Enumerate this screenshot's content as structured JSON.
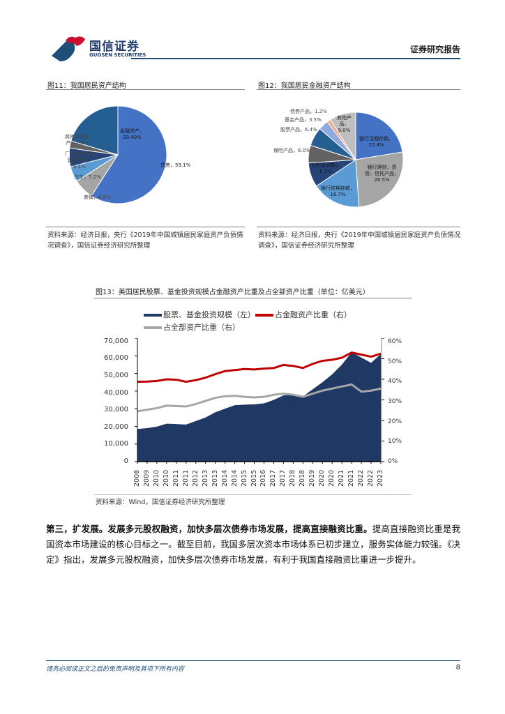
{
  "header": {
    "logo_cn": "国信证券",
    "logo_en": "GUOSEN SECURITIES",
    "report_type": "证券研究报告",
    "colors": {
      "brand_blue": "#1f4e79",
      "brand_red": "#c8102e"
    }
  },
  "figure11": {
    "title": "图11：我国居民资产结构",
    "source": "资料来源：经济日报，央行《2019年中国城镇居民家庭资产负债情况调查》，国信证券经济研究所整理",
    "labels": {
      "housing": "住房，59.1%",
      "financial_l1": "金融资产，",
      "financial_l2": "20.40%",
      "other_l1": "其他实物资",
      "other_l2": "产，2.4%",
      "plant_l1": "厂房设备等经",
      "plant_l2": "营性资产，",
      "plant_l3": "6.1%",
      "car": "汽车，5.2%",
      "shop": "商铺，6.8%"
    }
  },
  "figure12": {
    "title": "图12：我国居民金融资产结构",
    "source": "资料来源：经济日报，央行《2019年中国城镇居民家庭资产负债情况调查》，国信证券经济研究所整理",
    "labels": {
      "demand_l1": "银行活期存款，",
      "demand_l2": "22.4%",
      "wealth_l1": "银行理财，资",
      "wealth_l2": "管，信托产品，",
      "wealth_l3": "26.5%",
      "time_l1": "银行定期存款，",
      "time_l2": "16.7%",
      "fund_provident_l1": "公积金余额，",
      "fund_provident_l2": "8.3%",
      "insurance": "保险产品，6.0%",
      "stock": "股票产品，6.4%",
      "fund": "基金产品，3.5%",
      "bond": "债券产品，1.2%",
      "other_l1": "其他产",
      "other_l2": "品，",
      "other_l3": "9.0%"
    }
  },
  "figure13": {
    "title": "图13：美国居民股票、基金投资规模占金融资产比重及占全部资产比重（单位：亿美元）",
    "source": "资料来源：Wind，国信证券经济研究所整理",
    "legend": {
      "series1": "股票、基金投资规模（左）",
      "series2": "占金融资产比重（右）",
      "series3": "占全部资产比重（右）"
    },
    "y_left_ticks": [
      "70,000",
      "60,000",
      "50,000",
      "40,000",
      "30,000",
      "20,000",
      "10,000",
      "0"
    ],
    "y_right_ticks": [
      "60%",
      "50%",
      "40%",
      "30%",
      "20%",
      "10%",
      "0%"
    ]
  },
  "chart_data": [
    {
      "type": "pie",
      "title": "图11：我国居民资产结构",
      "categories": [
        "住房",
        "商铺",
        "汽车",
        "厂房设备等经营性资产",
        "其他实物资产",
        "金融资产"
      ],
      "values": [
        59.1,
        6.8,
        5.2,
        6.1,
        2.4,
        20.4
      ],
      "unit": "%",
      "colors": [
        "#4472c4",
        "#a5a5a5",
        "#5b9bd5",
        "#264478",
        "#636363",
        "#255e91"
      ]
    },
    {
      "type": "pie",
      "title": "图12：我国居民金融资产结构",
      "categories": [
        "银行活期存款",
        "银行理财，资管，信托产品",
        "银行定期存款",
        "公积金余额",
        "保险产品",
        "股票产品",
        "基金产品",
        "债券产品",
        "其他产品"
      ],
      "values": [
        22.4,
        26.5,
        16.7,
        8.3,
        6.0,
        6.4,
        3.5,
        1.2,
        9.0
      ],
      "unit": "%",
      "colors": [
        "#4472c4",
        "#a5a5a5",
        "#5b9bd5",
        "#264478",
        "#636363",
        "#255e91",
        "#8faadc",
        "#f4a582",
        "#bfbfbf"
      ]
    },
    {
      "type": "area",
      "title": "图13：美国居民股票、基金投资规模占金融资产比重及占全部资产比重（单位：亿美元）",
      "x": [
        "2008",
        "2009",
        "2010",
        "2010",
        "2011",
        "2011",
        "2012",
        "2013",
        "2013",
        "2014",
        "2014",
        "2015",
        "2015",
        "2016",
        "2017",
        "2017",
        "2018",
        "2018",
        "2019",
        "2020",
        "2020",
        "2021",
        "2021",
        "2022",
        "2022",
        "2023"
      ],
      "series": [
        {
          "name": "股票、基金投资规模（左）",
          "type": "area",
          "axis": "left",
          "color": "#1f3864",
          "values": [
            18500,
            19000,
            19800,
            21500,
            21300,
            21000,
            23000,
            25000,
            28000,
            30000,
            32000,
            32300,
            32500,
            33000,
            35000,
            37500,
            38000,
            37000,
            41000,
            45000,
            49500,
            55000,
            62000,
            59000,
            56000,
            61000
          ]
        },
        {
          "name": "占金融资产比重（右）",
          "type": "line",
          "axis": "right",
          "color": "#c00000",
          "values": [
            38.8,
            38.9,
            39.2,
            40.0,
            39.8,
            38.8,
            39.6,
            40.8,
            42.5,
            44.0,
            44.5,
            45.0,
            44.8,
            45.2,
            45.5,
            47.0,
            46.5,
            45.5,
            47.5,
            49.0,
            49.5,
            50.5,
            53.0,
            52.0,
            51.0,
            52.5
          ]
        },
        {
          "name": "占全部资产比重（右）",
          "type": "line",
          "axis": "right",
          "color": "#a6a6a6",
          "values": [
            24.5,
            25.2,
            26.0,
            27.2,
            27.0,
            26.8,
            28.0,
            29.5,
            31.0,
            31.8,
            32.0,
            31.5,
            31.2,
            31.5,
            32.5,
            33.0,
            32.5,
            31.5,
            33.0,
            34.5,
            35.5,
            36.5,
            37.5,
            34.0,
            34.5,
            35.5
          ]
        }
      ],
      "ylim_left": [
        0,
        70000
      ],
      "ylim_right": [
        0,
        60
      ],
      "ylabel_left": "亿美元",
      "ylabel_right": "%",
      "legend_position": "top",
      "grid": false
    }
  ],
  "body": {
    "bold_lead": "第三，扩发展。发展多元股权融资，加快多层次债券市场发展，提高直接融资比重。",
    "text": "提高直接融资比重是我国资本市场建设的核心目标之一。截至目前，我国多层次资本市场体系已初步建立，服务实体能力较强。《决定》指出，发展多元股权融资，加快多层次债券市场发展，有利于我国直接融资比重进一步提升。"
  },
  "footer": {
    "disclaimer": "请务必阅读正文之后的免责声明及其项下所有内容",
    "page_number": "8"
  }
}
